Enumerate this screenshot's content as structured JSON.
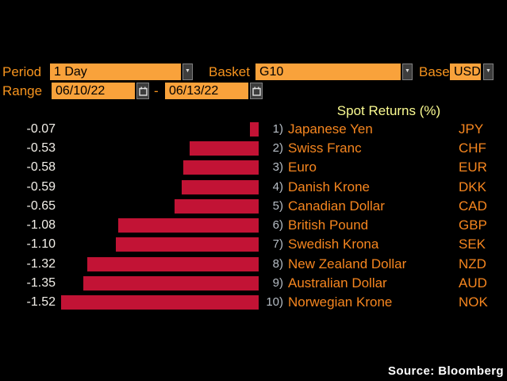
{
  "controls": {
    "period": {
      "label": "Period",
      "value": "1 Day"
    },
    "basket": {
      "label": "Basket",
      "value": "G10"
    },
    "base": {
      "label": "Base",
      "value": "USD"
    },
    "range": {
      "label": "Range",
      "start_date": "06/10/22",
      "separator": "-",
      "end_date": "06/13/22"
    }
  },
  "chart_data": {
    "type": "bar",
    "orientation": "horizontal",
    "title": "Spot Returns (%)",
    "value_unit": "%",
    "xlim": [
      -1.6,
      0
    ],
    "bar_color": "#C21335",
    "rows": [
      {
        "rank": "1)",
        "name": "Japanese Yen",
        "code": "JPY",
        "value": -0.07,
        "display": "-0.07"
      },
      {
        "rank": "2)",
        "name": "Swiss Franc",
        "code": "CHF",
        "value": -0.53,
        "display": "-0.53"
      },
      {
        "rank": "3)",
        "name": "Euro",
        "code": "EUR",
        "value": -0.58,
        "display": "-0.58"
      },
      {
        "rank": "4)",
        "name": "Danish Krone",
        "code": "DKK",
        "value": -0.59,
        "display": "-0.59"
      },
      {
        "rank": "5)",
        "name": "Canadian Dollar",
        "code": "CAD",
        "value": -0.65,
        "display": "-0.65"
      },
      {
        "rank": "6)",
        "name": "British Pound",
        "code": "GBP",
        "value": -1.08,
        "display": "-1.08"
      },
      {
        "rank": "7)",
        "name": "Swedish Krona",
        "code": "SEK",
        "value": -1.1,
        "display": "-1.10"
      },
      {
        "rank": "8)",
        "name": "New Zealand Dollar",
        "code": "NZD",
        "value": -1.32,
        "display": "-1.32"
      },
      {
        "rank": "9)",
        "name": "Australian Dollar",
        "code": "AUD",
        "value": -1.35,
        "display": "-1.35"
      },
      {
        "rank": "10)",
        "name": "Norwegian Krone",
        "code": "NOK",
        "value": -1.52,
        "display": "-1.52"
      }
    ]
  },
  "footer": {
    "source": "Source: Bloomberg"
  },
  "colors": {
    "background": "#000000",
    "amber_field": "#F9A23B",
    "amber_text": "#F7941E",
    "bar_red": "#C21335",
    "title_yellow": "#FBFB91",
    "value_text": "#F2EFE9",
    "rank_gray": "#B7BEC6",
    "button_gray": "#3D3D3D",
    "source_text": "#FFFFFF"
  }
}
